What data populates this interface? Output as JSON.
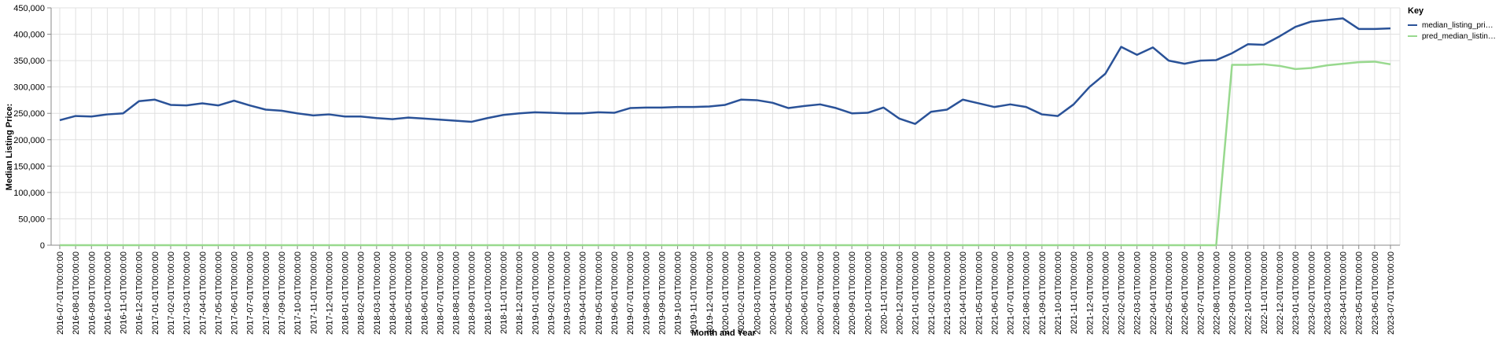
{
  "chart_data": {
    "type": "line",
    "xlabel": "Month and Year",
    "ylabel": "Median Listing Price:",
    "ylim": [
      0,
      450000
    ],
    "yticks": [
      "0",
      "50,000",
      "100,000",
      "150,000",
      "200,000",
      "250,000",
      "300,000",
      "350,000",
      "400,000",
      "450,000"
    ],
    "ytick_values": [
      0,
      50000,
      100000,
      150000,
      200000,
      250000,
      300000,
      350000,
      400000,
      450000
    ],
    "grid": true,
    "legend": {
      "title": "Key",
      "placement": "right",
      "entries": [
        "median_listing_pri…",
        "pred_median_listin…"
      ]
    },
    "x": [
      "2016-07-01T00:00:00",
      "2016-08-01T00:00:00",
      "2016-09-01T00:00:00",
      "2016-10-01T00:00:00",
      "2016-11-01T00:00:00",
      "2016-12-01T00:00:00",
      "2017-01-01T00:00:00",
      "2017-02-01T00:00:00",
      "2017-03-01T00:00:00",
      "2017-04-01T00:00:00",
      "2017-05-01T00:00:00",
      "2017-06-01T00:00:00",
      "2017-07-01T00:00:00",
      "2017-08-01T00:00:00",
      "2017-09-01T00:00:00",
      "2017-10-01T00:00:00",
      "2017-11-01T00:00:00",
      "2017-12-01T00:00:00",
      "2018-01-01T00:00:00",
      "2018-02-01T00:00:00",
      "2018-03-01T00:00:00",
      "2018-04-01T00:00:00",
      "2018-05-01T00:00:00",
      "2018-06-01T00:00:00",
      "2018-07-01T00:00:00",
      "2018-08-01T00:00:00",
      "2018-09-01T00:00:00",
      "2018-10-01T00:00:00",
      "2018-11-01T00:00:00",
      "2018-12-01T00:00:00",
      "2019-01-01T00:00:00",
      "2019-02-01T00:00:00",
      "2019-03-01T00:00:00",
      "2019-04-01T00:00:00",
      "2019-05-01T00:00:00",
      "2019-06-01T00:00:00",
      "2019-07-01T00:00:00",
      "2019-08-01T00:00:00",
      "2019-09-01T00:00:00",
      "2019-10-01T00:00:00",
      "2019-11-01T00:00:00",
      "2019-12-01T00:00:00",
      "2020-01-01T00:00:00",
      "2020-02-01T00:00:00",
      "2020-03-01T00:00:00",
      "2020-04-01T00:00:00",
      "2020-05-01T00:00:00",
      "2020-06-01T00:00:00",
      "2020-07-01T00:00:00",
      "2020-08-01T00:00:00",
      "2020-09-01T00:00:00",
      "2020-10-01T00:00:00",
      "2020-11-01T00:00:00",
      "2020-12-01T00:00:00",
      "2021-01-01T00:00:00",
      "2021-02-01T00:00:00",
      "2021-03-01T00:00:00",
      "2021-04-01T00:00:00",
      "2021-05-01T00:00:00",
      "2021-06-01T00:00:00",
      "2021-07-01T00:00:00",
      "2021-08-01T00:00:00",
      "2021-09-01T00:00:00",
      "2021-10-01T00:00:00",
      "2021-11-01T00:00:00",
      "2021-12-01T00:00:00",
      "2022-01-01T00:00:00",
      "2022-02-01T00:00:00",
      "2022-03-01T00:00:00",
      "2022-04-01T00:00:00",
      "2022-05-01T00:00:00",
      "2022-06-01T00:00:00",
      "2022-07-01T00:00:00",
      "2022-08-01T00:00:00",
      "2022-09-01T00:00:00",
      "2022-10-01T00:00:00",
      "2022-11-01T00:00:00",
      "2022-12-01T00:00:00",
      "2023-01-01T00:00:00",
      "2023-02-01T00:00:00",
      "2023-03-01T00:00:00",
      "2023-04-01T00:00:00",
      "2023-05-01T00:00:00",
      "2023-06-01T00:00:00",
      "2023-07-01T00:00:00"
    ],
    "series": [
      {
        "name": "median_listing_pri…",
        "color": "#2a5298",
        "values": [
          237000,
          245000,
          244000,
          248000,
          250000,
          273000,
          276000,
          266000,
          265000,
          269000,
          265000,
          274000,
          265000,
          257000,
          255000,
          250000,
          246000,
          248000,
          244000,
          244000,
          241000,
          239000,
          242000,
          240000,
          238000,
          236000,
          234000,
          241000,
          247000,
          250000,
          252000,
          251000,
          250000,
          250000,
          252000,
          251000,
          260000,
          261000,
          261000,
          262000,
          262000,
          263000,
          266000,
          276000,
          275000,
          270000,
          260000,
          264000,
          267000,
          260000,
          250000,
          251000,
          261000,
          240000,
          230000,
          253000,
          257000,
          276000,
          269000,
          262000,
          267000,
          262000,
          248000,
          245000,
          267000,
          300000,
          325000,
          376000,
          361000,
          375000,
          350000,
          344000,
          350000,
          351000,
          364000,
          381000,
          380000,
          396000,
          414000,
          424000,
          427000,
          430000,
          410000,
          410000,
          411000
        ]
      },
      {
        "name": "pred_median_listin…",
        "color": "#98d98e",
        "values": [
          0,
          0,
          0,
          0,
          0,
          0,
          0,
          0,
          0,
          0,
          0,
          0,
          0,
          0,
          0,
          0,
          0,
          0,
          0,
          0,
          0,
          0,
          0,
          0,
          0,
          0,
          0,
          0,
          0,
          0,
          0,
          0,
          0,
          0,
          0,
          0,
          0,
          0,
          0,
          0,
          0,
          0,
          0,
          0,
          0,
          0,
          0,
          0,
          0,
          0,
          0,
          0,
          0,
          0,
          0,
          0,
          0,
          0,
          0,
          0,
          0,
          0,
          0,
          0,
          0,
          0,
          0,
          0,
          0,
          0,
          0,
          0,
          0,
          0,
          342000,
          342000,
          343000,
          340000,
          334000,
          336000,
          341000,
          344000,
          347000,
          348000,
          343000
        ]
      }
    ]
  }
}
